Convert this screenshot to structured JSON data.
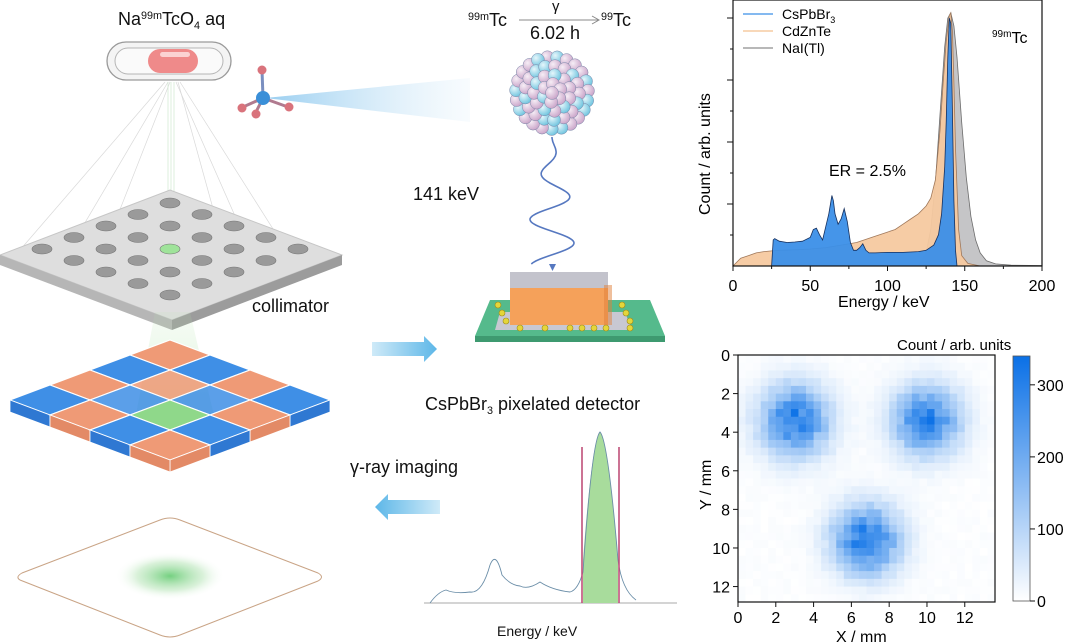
{
  "illustration": {
    "source_label": {
      "pre": "Na",
      "sup": "99m",
      "mid": "TcO",
      "sub": "4",
      "post": " aq"
    },
    "decay": {
      "parent_sup": "99m",
      "parent": "Tc",
      "arrow_label": "γ",
      "daughter_sup": "99",
      "daughter": "Tc",
      "half_life": "6.02 h"
    },
    "gamma_energy": "141 keV",
    "collimator_label": "collimator",
    "detector_label": {
      "pre": "CsPbBr",
      "sub": "3",
      "post": " pixelated detector"
    },
    "imaging_label": "γ-ray imaging",
    "mini_spectrum_xlabel": "Energy / keV",
    "colors": {
      "capsule": "#ef8a8a",
      "pixel_blue": "#3f8fe6",
      "pixel_orange": "#ef9a76",
      "highlight_green": "#8fd88a",
      "pcb": "#52b98a",
      "crystal": "#f5a15a",
      "window_line": "#c0507a"
    }
  },
  "chart_data": [
    {
      "type": "area",
      "title": "",
      "xlabel": "Energy / keV",
      "ylabel": "Count / arb. units",
      "xlim": [
        0,
        200
      ],
      "ylim": [
        0,
        1.0
      ],
      "xticks": [
        0,
        50,
        100,
        150,
        200
      ],
      "yticks_labeled": false,
      "grid": false,
      "legend": {
        "placement": "top-left",
        "entries": [
          {
            "label_pre": "CsPbBr",
            "label_sub": "3",
            "color": "#3b8fe8"
          },
          {
            "label_pre": "CdZnTe",
            "label_sub": "",
            "color": "#f3c08f"
          },
          {
            "label_pre": "NaI(Tl)",
            "label_sub": "",
            "color": "#8e8e8e"
          }
        ]
      },
      "annotations": [
        {
          "text": "ER = 2.5%"
        },
        {
          "text_sup": "99m",
          "text": "Tc",
          "placement": "top-right"
        }
      ],
      "series": [
        {
          "name": "NaI(Tl)",
          "fill": "#c2c2c4",
          "stroke": "#6c6c6c",
          "x": [
            120,
            125,
            128,
            131,
            134,
            137,
            139,
            141,
            143,
            145,
            148,
            151,
            154,
            157,
            160,
            164,
            170,
            180,
            200
          ],
          "y": [
            0.0,
            0.05,
            0.14,
            0.32,
            0.58,
            0.84,
            0.95,
            0.97,
            0.92,
            0.8,
            0.55,
            0.34,
            0.19,
            0.1,
            0.05,
            0.02,
            0.008,
            0.003,
            0.002
          ]
        },
        {
          "name": "CdZnTe",
          "fill": "#f6c9a0",
          "stroke": "#a0785a",
          "x": [
            0,
            5,
            10,
            15,
            20,
            25,
            30,
            40,
            50,
            60,
            70,
            80,
            90,
            100,
            105,
            110,
            115,
            120,
            125,
            128,
            131,
            134,
            136,
            138,
            140,
            141,
            142,
            143,
            144,
            146,
            148,
            152,
            160
          ],
          "y": [
            0.0,
            0.03,
            0.04,
            0.05,
            0.055,
            0.058,
            0.06,
            0.062,
            0.065,
            0.07,
            0.08,
            0.09,
            0.11,
            0.13,
            0.14,
            0.16,
            0.18,
            0.2,
            0.23,
            0.26,
            0.33,
            0.52,
            0.7,
            0.86,
            0.96,
            0.97,
            0.9,
            0.7,
            0.45,
            0.14,
            0.04,
            0.01,
            0.0
          ]
        },
        {
          "name": "CsPbBr3",
          "fill": "#3b8fe8",
          "stroke": "#16305e",
          "x": [
            25,
            26,
            27,
            30,
            35,
            40,
            45,
            50,
            52,
            54,
            56,
            58,
            60,
            62,
            64,
            65,
            66,
            68,
            70,
            72,
            74,
            76,
            78,
            80,
            82,
            84,
            86,
            88,
            92,
            100,
            110,
            120,
            125,
            130,
            133,
            135,
            137,
            138,
            139,
            140,
            141,
            142,
            143,
            144,
            145
          ],
          "y": [
            0.0,
            0.1,
            0.105,
            0.095,
            0.09,
            0.092,
            0.095,
            0.11,
            0.14,
            0.145,
            0.12,
            0.1,
            0.15,
            0.2,
            0.27,
            0.25,
            0.2,
            0.16,
            0.18,
            0.22,
            0.17,
            0.09,
            0.06,
            0.06,
            0.07,
            0.085,
            0.06,
            0.05,
            0.05,
            0.052,
            0.052,
            0.055,
            0.06,
            0.08,
            0.12,
            0.2,
            0.38,
            0.55,
            0.8,
            0.95,
            0.93,
            0.6,
            0.25,
            0.06,
            0.0
          ]
        }
      ]
    },
    {
      "type": "heatmap",
      "title": "",
      "xlabel": "X / mm",
      "ylabel": "Y / mm",
      "xlim": [
        0,
        13.6
      ],
      "ylim": [
        12.8,
        0
      ],
      "xticks": [
        0,
        2,
        4,
        6,
        8,
        10,
        12
      ],
      "yticks": [
        0,
        2,
        4,
        6,
        8,
        10,
        12
      ],
      "colorbar": {
        "label": "Count / arb. units",
        "range": [
          0,
          340
        ],
        "ticks": [
          0,
          100,
          200,
          300
        ],
        "color_low": "#ffffff",
        "color_high": "#0a70e6"
      },
      "grid_cells": [
        34,
        32
      ],
      "sources": [
        {
          "x_mm": 3.0,
          "y_mm": 3.4,
          "peak": 300,
          "sigma_mm": 1.25
        },
        {
          "x_mm": 10.0,
          "y_mm": 3.4,
          "peak": 300,
          "sigma_mm": 1.2
        },
        {
          "x_mm": 6.8,
          "y_mm": 9.6,
          "peak": 320,
          "sigma_mm": 1.2
        }
      ]
    }
  ]
}
